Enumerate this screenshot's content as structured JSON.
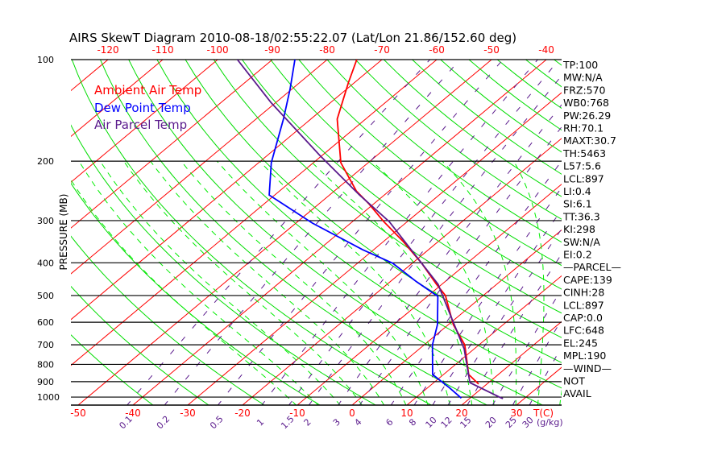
{
  "chart_data": {
    "type": "line",
    "subtype": "skew-t log-p",
    "title": "AIRS SkewT Diagram 2010-08-18/02:55:22.07 (Lat/Lon 21.86/152.60 deg)",
    "ylabel": "PRESSURE (MB)",
    "xlabel": "T(C)",
    "mixing_ratio_label": "(g/kg)",
    "ylim": [
      1055,
      100
    ],
    "y_ticks": [
      100,
      200,
      300,
      400,
      500,
      600,
      700,
      800,
      900,
      1000
    ],
    "x_ticks_bottom": [
      -50,
      -40,
      -30,
      -20,
      -10,
      0,
      10,
      20,
      30
    ],
    "x_ticks_top": [
      -120,
      -110,
      -100,
      -90,
      -80,
      -70,
      -60,
      -50,
      -40
    ],
    "mixing_ratio_ticks": [
      "0.1",
      "0.2",
      "0.5",
      "1",
      "1.5",
      "2",
      "3",
      "4",
      "6",
      "8",
      "10",
      "12",
      "15",
      "20",
      "25",
      "30"
    ],
    "legend": [
      {
        "label": "Ambient Air Temp",
        "color": "#ff0000"
      },
      {
        "label": "Dew Point Temp",
        "color": "#0000ff"
      },
      {
        "label": "Air Parcel Temp",
        "color": "#5a1a8c"
      }
    ],
    "series": [
      {
        "name": "Ambient Air Temp",
        "color": "#ff0000",
        "p": [
          100,
          117,
          150,
          202,
          245,
          267,
          302,
          346,
          401,
          463,
          500,
          610,
          700,
          857,
          915
        ],
        "t": [
          -74.6,
          -71.1,
          -65.2,
          -55,
          -46,
          -41,
          -34.3,
          -26.4,
          -18.3,
          -11,
          -6.9,
          0.9,
          7.4,
          14.6,
          18.5
        ]
      },
      {
        "name": "Dew Point Temp",
        "color": "#0000ff",
        "p": [
          100,
          122,
          150,
          202,
          252,
          305,
          366,
          401,
          455,
          503,
          610,
          700,
          857,
          940,
          1007
        ],
        "t": [
          -85.9,
          -80.4,
          -75,
          -67.7,
          -61,
          -47,
          -32,
          -23.6,
          -15.2,
          -8.1,
          -2,
          1.5,
          8,
          14.1,
          18.4
        ]
      },
      {
        "name": "Air Parcel Temp",
        "color": "#5a1a8c",
        "p": [
          100,
          134,
          192,
          252,
          302,
          401,
          463,
          577,
          720,
          906,
          1005,
          1010
        ],
        "t": [
          -96.4,
          -80.9,
          -60.5,
          -44.5,
          -33.3,
          -18.3,
          -10.7,
          -1.3,
          8.2,
          16.6,
          25.6,
          26.1
        ]
      }
    ],
    "colors": {
      "isotherm": "#ff0000",
      "dry_adiabat": "#00dd00",
      "moist_adiabat": "#00ee00",
      "mixing_ratio": "#5a1a8c",
      "isobar": "#000000"
    }
  },
  "stats_panel": [
    "TP:100",
    "MW:N/A",
    "FRZ:570",
    "WB0:768",
    "PW:26.29",
    "RH:70.1",
    "MAXT:30.7",
    "TH:5463",
    "L57:5.6",
    "LCL:897",
    "LI:0.4",
    "SI:6.1",
    "TT:36.3",
    "KI:298",
    "SW:N/A",
    "EI:0.2",
    "—PARCEL—",
    "CAPE:139",
    "CINH:28",
    "LCL:897",
    "CAP:0.0",
    "LFC:648",
    "EL:245",
    "MPL:190",
    "—WIND—",
    "NOT",
    "AVAIL"
  ]
}
